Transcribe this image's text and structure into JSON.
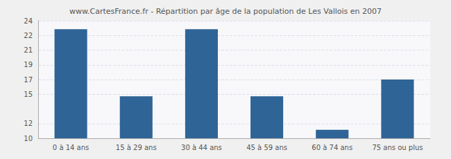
{
  "chart_data": {
    "type": "bar",
    "title": "www.CartesFrance.fr - Répartition par âge de la population de Les Vallois en 2007",
    "categories": [
      "0 à 14 ans",
      "15 à 29 ans",
      "30 à 44 ans",
      "45 à 59 ans",
      "60 à 74 ans",
      "75 ans ou plus"
    ],
    "values": [
      23,
      15,
      23,
      15,
      11,
      17
    ],
    "color": "#2f6496",
    "ylim": [
      10,
      24
    ],
    "yticks": [
      10,
      {
        "value": 11.75,
        "label": "12"
      },
      {
        "value": 15.25,
        "label": "15"
      },
      17,
      {
        "value": 18.75,
        "label": "19"
      },
      {
        "value": 20.5,
        "label": "21"
      },
      {
        "value": 22.25,
        "label": "22"
      },
      24
    ],
    "grid": true
  }
}
